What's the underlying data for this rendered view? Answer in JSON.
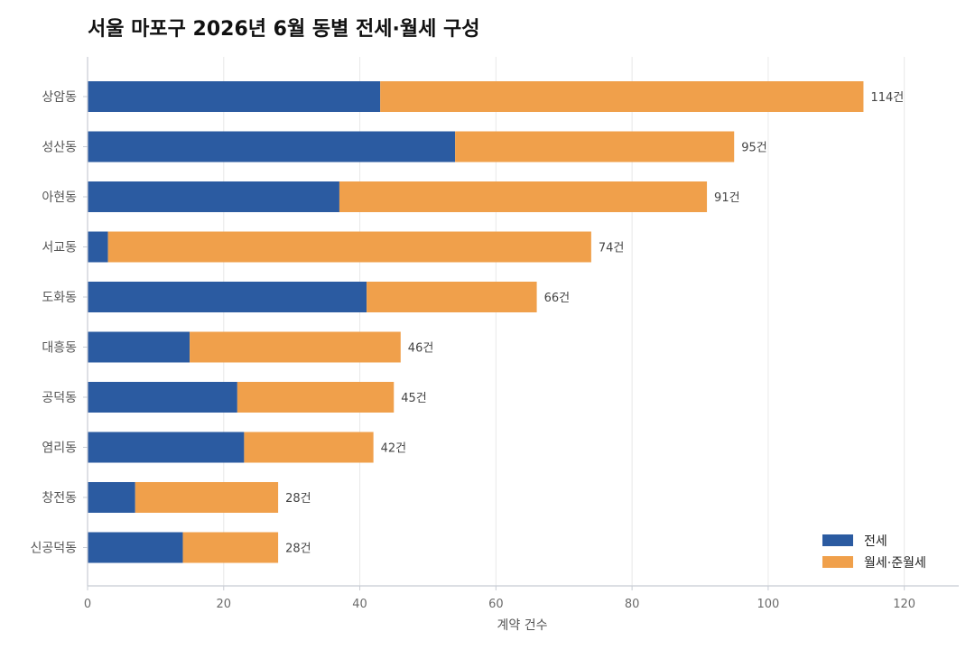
{
  "chart_data": {
    "type": "bar",
    "orientation": "horizontal",
    "stacked": true,
    "title": "서울 마포구 2026년 6월 동별 전세·월세 구성",
    "xlabel": "계약 건수",
    "ylabel": "",
    "xlim": [
      0,
      128
    ],
    "xticks": [
      0,
      20,
      40,
      60,
      80,
      100,
      120
    ],
    "grid": "vertical",
    "legend_position": "bottom-right",
    "total_suffix": "건",
    "categories": [
      "상암동",
      "성산동",
      "아현동",
      "서교동",
      "도화동",
      "대흥동",
      "공덕동",
      "염리동",
      "창전동",
      "신공덕동"
    ],
    "series": [
      {
        "name": "전세",
        "color": "#2b5ba1",
        "values": [
          43,
          54,
          37,
          3,
          41,
          15,
          22,
          23,
          7,
          14
        ]
      },
      {
        "name": "월세·준월세",
        "color": "#f0a04b",
        "values": [
          71,
          41,
          54,
          71,
          25,
          31,
          23,
          19,
          21,
          14
        ]
      }
    ],
    "totals": [
      114,
      95,
      91,
      74,
      66,
      46,
      45,
      42,
      28,
      28
    ]
  }
}
